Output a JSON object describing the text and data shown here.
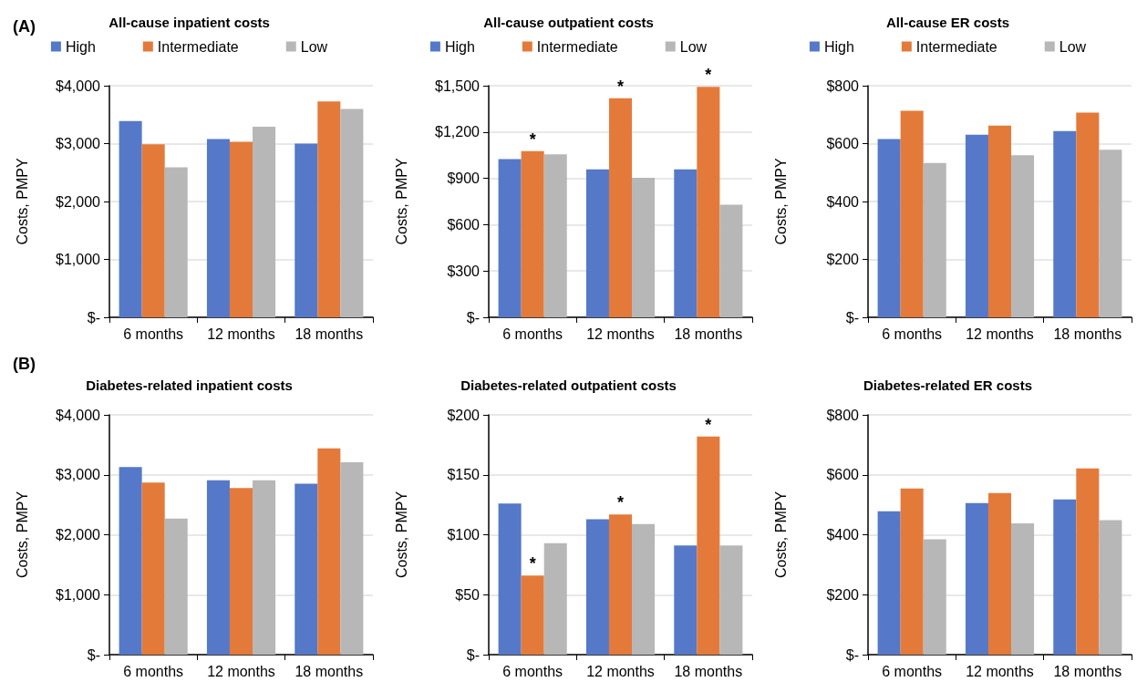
{
  "chart_data": [
    {
      "type": "bar",
      "title": "All-cause inpatient costs",
      "ylabel": "Costs, PMPY",
      "categories": [
        "6 months",
        "12 months",
        "18 months"
      ],
      "legend": "top",
      "grid": "y",
      "annotations": [
        "(A)"
      ],
      "series": [
        {
          "name": "High",
          "color": "#5579c8",
          "values": [
            3390,
            3080,
            3000
          ]
        },
        {
          "name": "Intermediate",
          "color": "#e47a3a",
          "values": [
            2990,
            3030,
            3730
          ]
        },
        {
          "name": "Low",
          "color": "#b7b7b7",
          "values": [
            2590,
            3290,
            3600
          ]
        }
      ],
      "ylim": [
        0,
        4000
      ],
      "yticks": [
        {
          "value": 0,
          "label": "$-"
        },
        {
          "value": 1000,
          "label": "$1,000"
        },
        {
          "value": 2000,
          "label": "$2,000"
        },
        {
          "value": 3000,
          "label": "$3,000"
        },
        {
          "value": 4000,
          "label": "$4,000"
        }
      ]
    },
    {
      "type": "bar",
      "title": "All-cause outpatient costs",
      "ylabel": "Costs, PMPY",
      "categories": [
        "6 months",
        "12 months",
        "18 months"
      ],
      "legend": "top",
      "grid": "y",
      "annotations": [
        {
          "text": "*",
          "x": "6 months",
          "y": 1077
        },
        {
          "text": "*",
          "x": "12 months",
          "y": 1419
        },
        {
          "text": "*",
          "x": "18 months",
          "y": 1492
        }
      ],
      "series": [
        {
          "name": "High",
          "color": "#5579c8",
          "values": [
            1025,
            958,
            958
          ]
        },
        {
          "name": "Intermediate",
          "color": "#e47a3a",
          "values": [
            1077,
            1419,
            1492
          ]
        },
        {
          "name": "Low",
          "color": "#b7b7b7",
          "values": [
            1056,
            904,
            729
          ]
        }
      ],
      "ylim": [
        0,
        1500
      ],
      "yticks": [
        {
          "value": 0,
          "label": "$-"
        },
        {
          "value": 300,
          "label": "$300"
        },
        {
          "value": 600,
          "label": "$600"
        },
        {
          "value": 900,
          "label": "$900"
        },
        {
          "value": 1200,
          "label": "$1,200"
        },
        {
          "value": 1500,
          "label": "$1,500"
        }
      ]
    },
    {
      "type": "bar",
      "title": "All-cause ER costs",
      "ylabel": "Costs, PMPY",
      "categories": [
        "6 months",
        "12 months",
        "18 months"
      ],
      "legend": "top",
      "grid": "y",
      "series": [
        {
          "name": "High",
          "color": "#5579c8",
          "values": [
            616,
            631,
            643
          ]
        },
        {
          "name": "Intermediate",
          "color": "#e47a3a",
          "values": [
            713,
            662,
            707
          ]
        },
        {
          "name": "Low",
          "color": "#b7b7b7",
          "values": [
            533,
            560,
            579
          ]
        }
      ],
      "ylim": [
        0,
        800
      ],
      "yticks": [
        {
          "value": 0,
          "label": "$-"
        },
        {
          "value": 200,
          "label": "$200"
        },
        {
          "value": 400,
          "label": "$400"
        },
        {
          "value": 600,
          "label": "$600"
        },
        {
          "value": 800,
          "label": "$800"
        }
      ]
    },
    {
      "type": "bar",
      "title": "Diabetes-related inpatient costs",
      "ylabel": "Costs, PMPY",
      "categories": [
        "6 months",
        "12 months",
        "18 months"
      ],
      "grid": "y",
      "annotations": [
        "(B)"
      ],
      "series": [
        {
          "color": "#5579c8",
          "values": [
            3130,
            2910,
            2850
          ]
        },
        {
          "color": "#e47a3a",
          "values": [
            2870,
            2780,
            3440
          ]
        },
        {
          "color": "#b7b7b7",
          "values": [
            2270,
            2910,
            3210
          ]
        }
      ],
      "ylim": [
        0,
        4000
      ],
      "yticks": [
        {
          "value": 0,
          "label": "$-"
        },
        {
          "value": 1000,
          "label": "$1,000"
        },
        {
          "value": 2000,
          "label": "$2,000"
        },
        {
          "value": 3000,
          "label": "$3,000"
        },
        {
          "value": 4000,
          "label": "$4,000"
        }
      ]
    },
    {
      "type": "bar",
      "title": "Diabetes-related outpatient costs",
      "ylabel": "Costs, PMPY",
      "categories": [
        "6 months",
        "12 months",
        "18 months"
      ],
      "grid": "y",
      "annotations": [
        {
          "text": "*",
          "x": "6 months",
          "y": 66
        },
        {
          "text": "*",
          "x": "12 months",
          "y": 117
        },
        {
          "text": "*",
          "x": "18 months",
          "y": 182
        }
      ],
      "series": [
        {
          "color": "#5579c8",
          "values": [
            126,
            113,
            91
          ]
        },
        {
          "color": "#e47a3a",
          "values": [
            66,
            117,
            182
          ]
        },
        {
          "color": "#b7b7b7",
          "values": [
            93,
            109,
            91
          ]
        }
      ],
      "ylim": [
        0,
        200
      ],
      "yticks": [
        {
          "value": 0,
          "label": "$-"
        },
        {
          "value": 50,
          "label": "$50"
        },
        {
          "value": 100,
          "label": "$100"
        },
        {
          "value": 150,
          "label": "$150"
        },
        {
          "value": 200,
          "label": "$200"
        }
      ]
    },
    {
      "type": "bar",
      "title": "Diabetes-related ER costs",
      "ylabel": "Costs, PMPY",
      "categories": [
        "6 months",
        "12 months",
        "18 months"
      ],
      "grid": "y",
      "series": [
        {
          "color": "#5579c8",
          "values": [
            478,
            506,
            518
          ]
        },
        {
          "color": "#e47a3a",
          "values": [
            554,
            539,
            621
          ]
        },
        {
          "color": "#b7b7b7",
          "values": [
            385,
            438,
            449
          ]
        }
      ],
      "ylim": [
        0,
        800
      ],
      "yticks": [
        {
          "value": 0,
          "label": "$-"
        },
        {
          "value": 200,
          "label": "$200"
        },
        {
          "value": 400,
          "label": "$400"
        },
        {
          "value": 600,
          "label": "$600"
        },
        {
          "value": 800,
          "label": "$800"
        }
      ]
    }
  ]
}
